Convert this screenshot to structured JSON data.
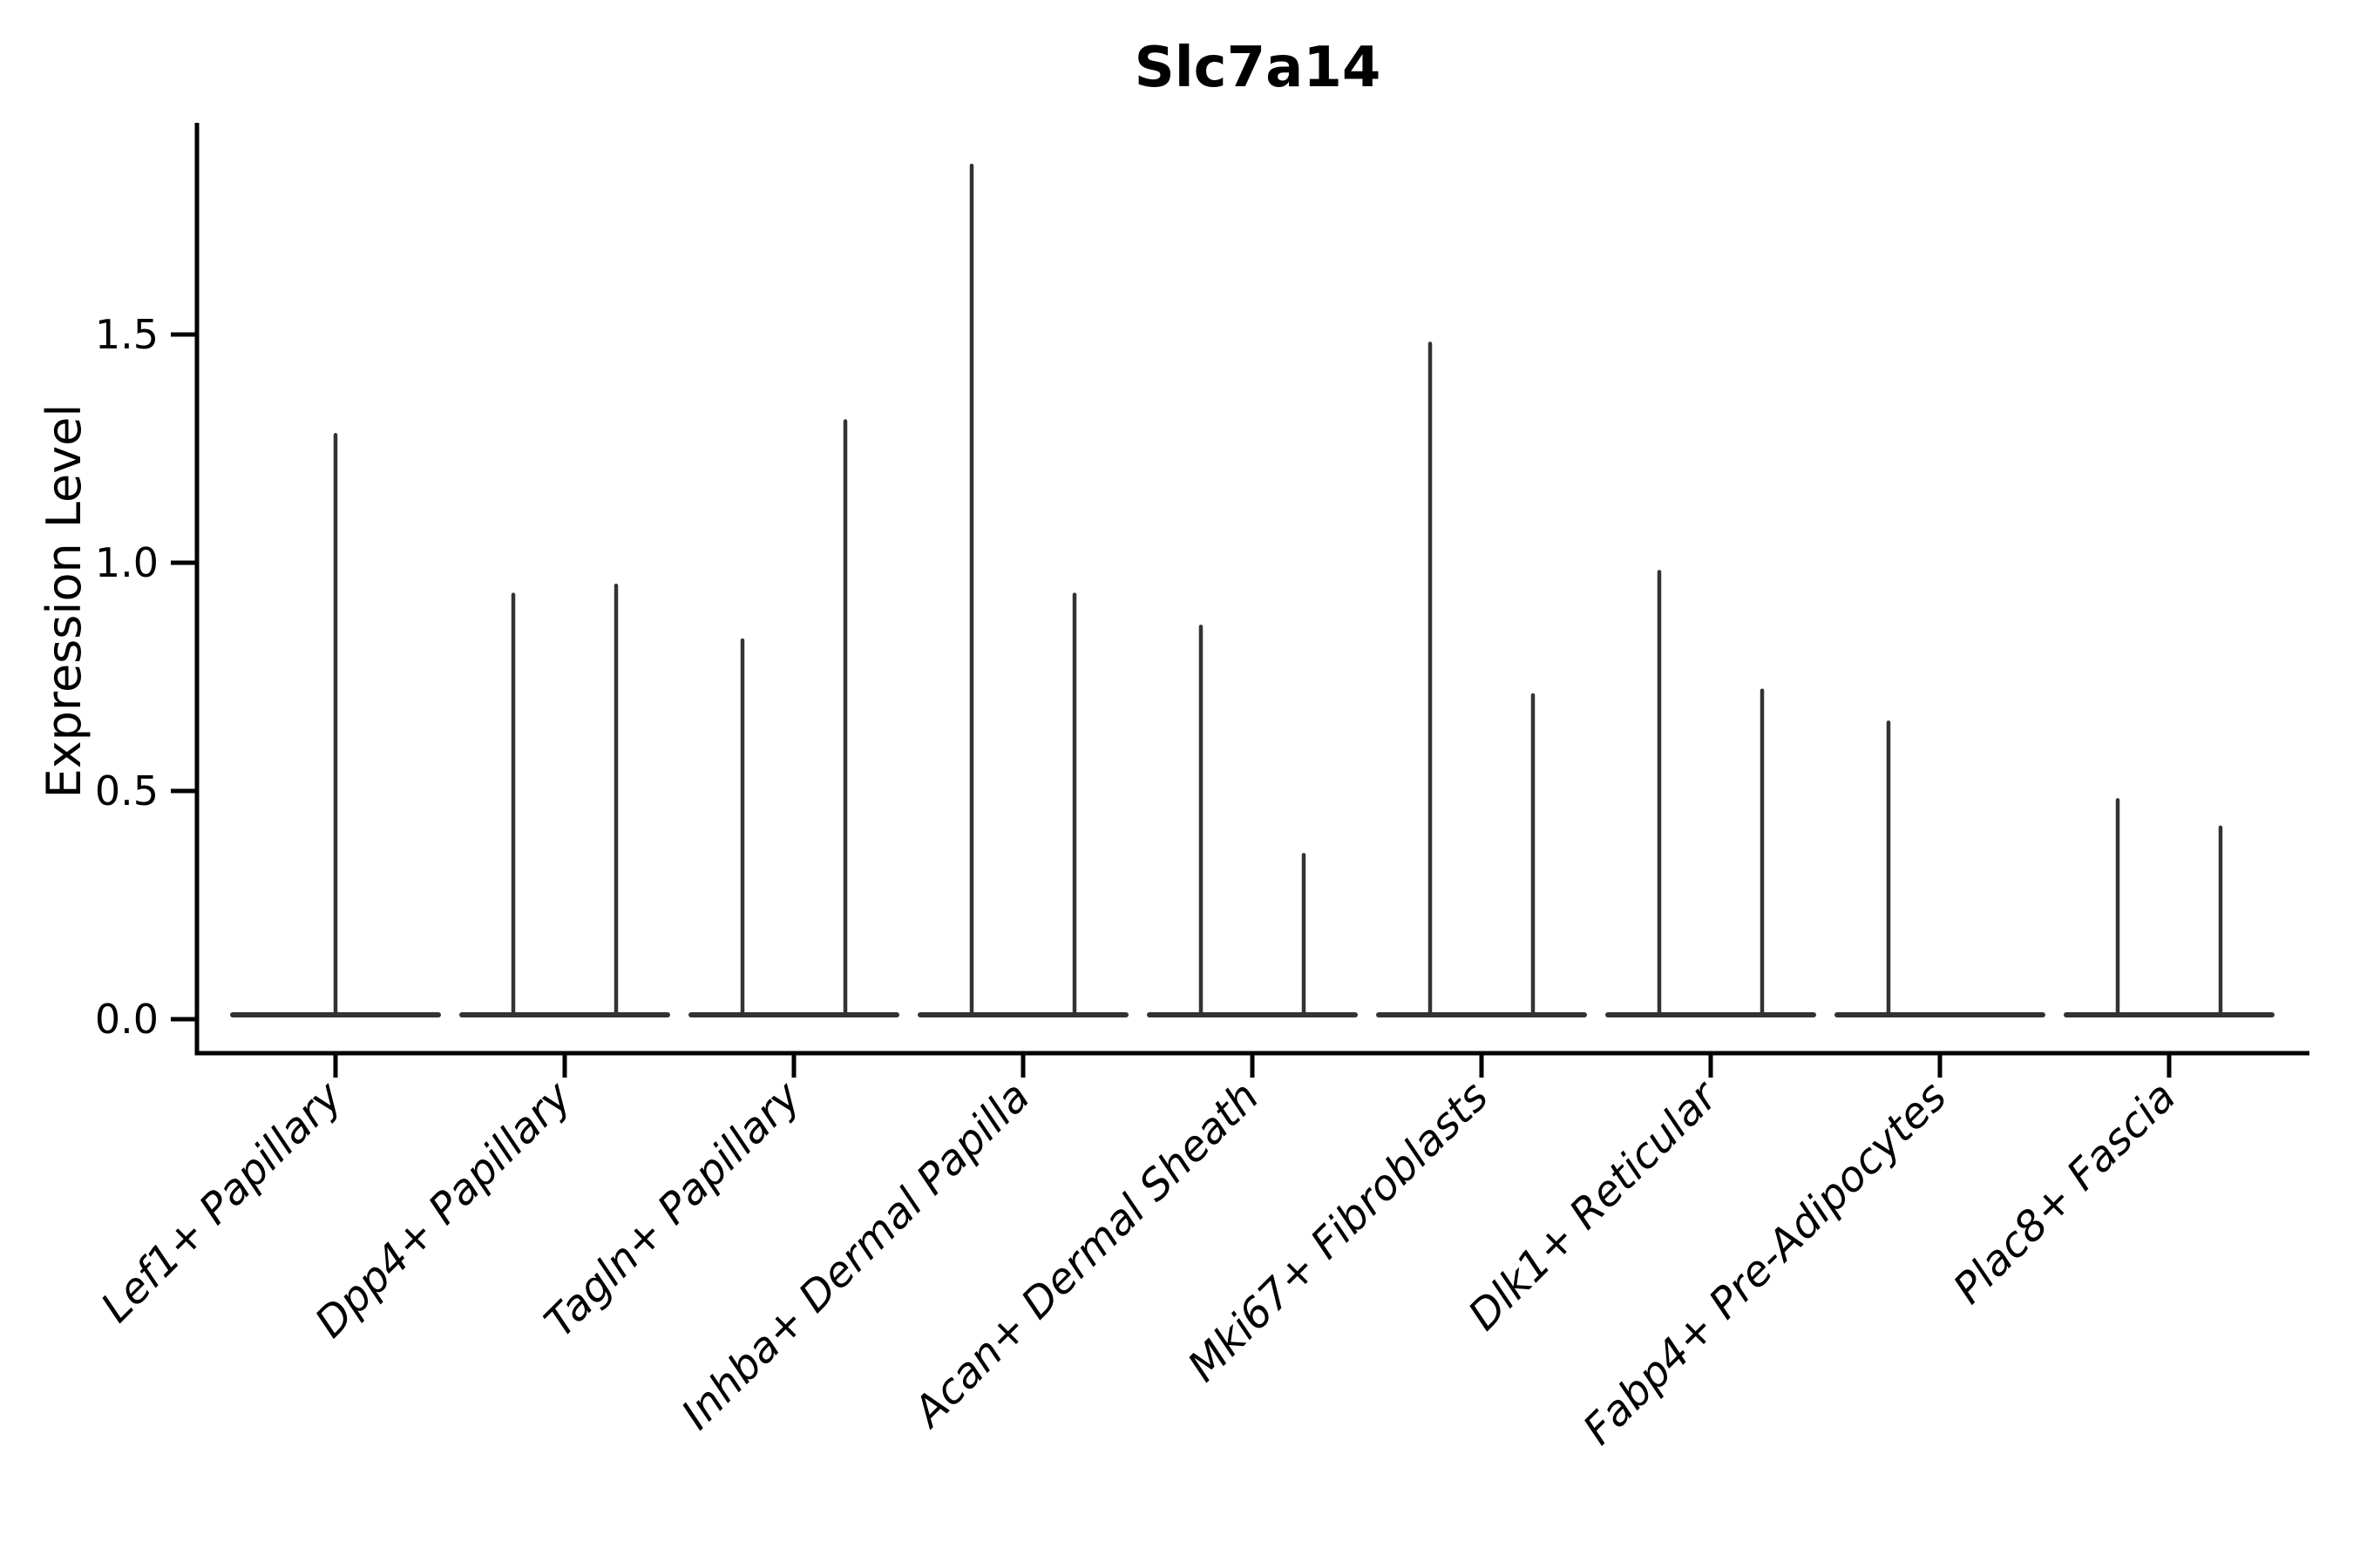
{
  "figure": {
    "background": "#ffffff"
  },
  "chart_data": {
    "type": "violin",
    "title": "Slc7a14",
    "ylabel": "Expression Level",
    "xlabel": "",
    "yticks": [
      0.0,
      0.5,
      1.0,
      1.5
    ],
    "ytick_labels": [
      "0.0",
      "0.5",
      "1.0",
      "1.5"
    ],
    "ylim": [
      -0.07,
      1.96
    ],
    "grid": false,
    "legend": false,
    "colors": {
      "violin": "#333333",
      "axis": "#000000",
      "text": "#000000"
    },
    "baseline_at_zero": true,
    "categories": [
      {
        "label": "Lef1+ Papillary",
        "spikes": [
          {
            "pos": "center",
            "max": 1.28
          }
        ]
      },
      {
        "label": "Dpp4+ Papillary",
        "spikes": [
          {
            "pos": "left",
            "max": 0.93
          },
          {
            "pos": "right",
            "max": 0.95
          }
        ]
      },
      {
        "label": "Tagln+ Papillary",
        "spikes": [
          {
            "pos": "left",
            "max": 0.83
          },
          {
            "pos": "right",
            "max": 1.31
          }
        ]
      },
      {
        "label": "Inhba+ Dermal Papilla",
        "spikes": [
          {
            "pos": "left",
            "max": 1.87
          },
          {
            "pos": "right",
            "max": 0.93
          }
        ]
      },
      {
        "label": "Acan+ Dermal Sheath",
        "spikes": [
          {
            "pos": "left",
            "max": 0.86
          },
          {
            "pos": "right",
            "max": 0.36
          }
        ]
      },
      {
        "label": "Mki67+ Fibroblasts",
        "spikes": [
          {
            "pos": "left",
            "max": 1.48
          },
          {
            "pos": "right",
            "max": 0.71
          }
        ]
      },
      {
        "label": "Dlk1+ Reticular",
        "spikes": [
          {
            "pos": "left",
            "max": 0.98
          },
          {
            "pos": "right",
            "max": 0.72
          }
        ]
      },
      {
        "label": "Fabp4+ Pre-Adipocytes",
        "spikes": [
          {
            "pos": "left",
            "max": 0.65
          }
        ]
      },
      {
        "label": "Plac8+ Fascia",
        "spikes": [
          {
            "pos": "left",
            "max": 0.48
          },
          {
            "pos": "right",
            "max": 0.42
          }
        ]
      }
    ]
  }
}
